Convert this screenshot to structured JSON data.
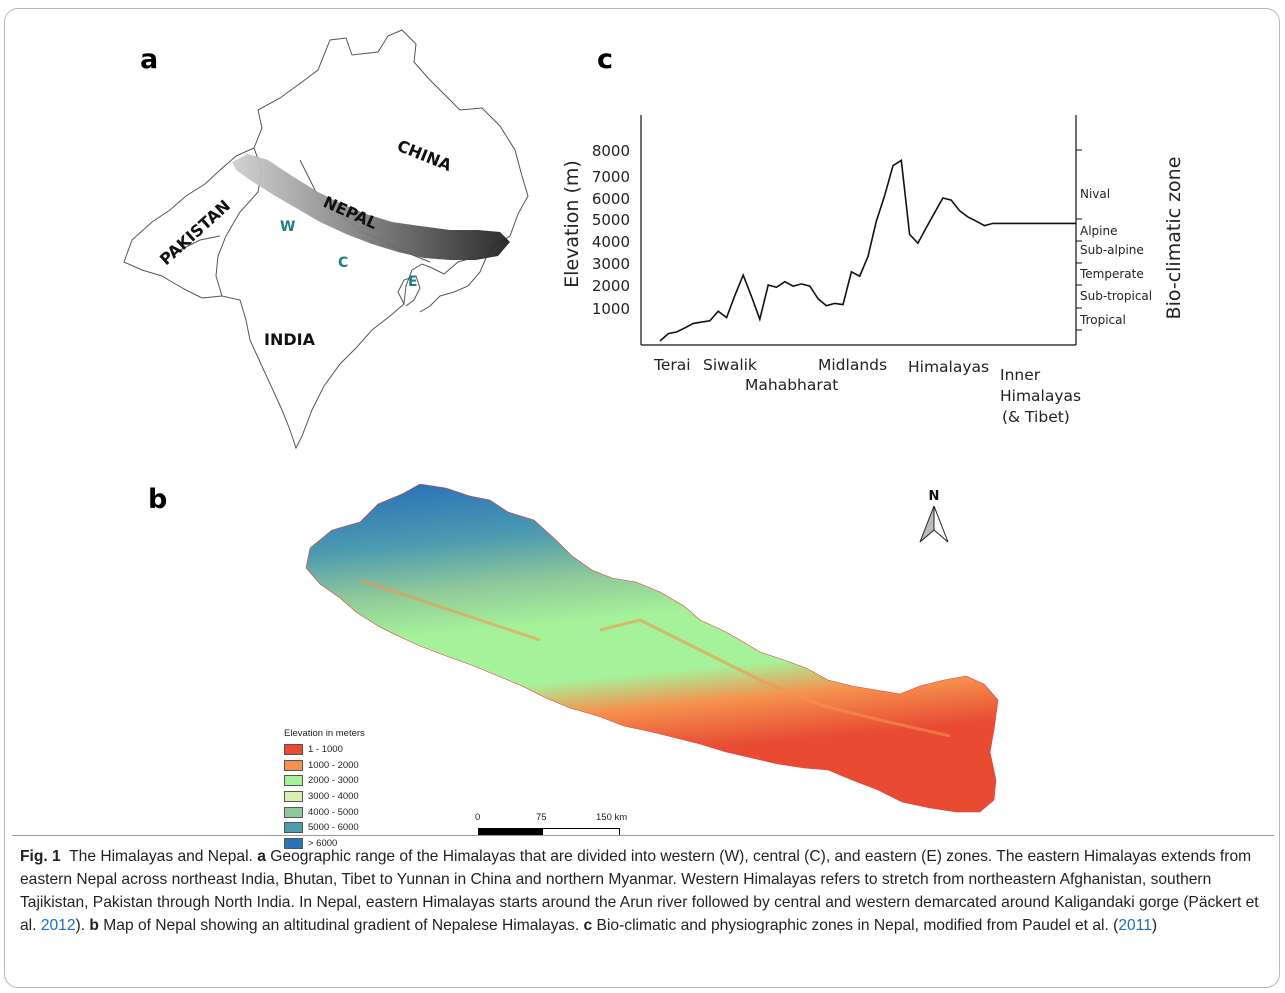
{
  "panels": {
    "a": {
      "letter": "a",
      "labels": {
        "china": "CHINA",
        "pakistan": "PAKISTAN",
        "nepal": "NEPAL",
        "india": "INDIA",
        "west": "W",
        "central": "C",
        "east": "E"
      },
      "zone_color": "#1e7f82"
    },
    "b": {
      "letter": "b",
      "north": "N",
      "legend": {
        "title": "Elevation in meters",
        "items": [
          {
            "label": "1 - 1000",
            "color": "#e84a32"
          },
          {
            "label": "1000 - 2000",
            "color": "#f5924f"
          },
          {
            "label": "2000 - 3000",
            "color": "#a6f29a"
          },
          {
            "label": "3000 - 4000",
            "color": "#d6f0b0"
          },
          {
            "label": "4000 - 5000",
            "color": "#8fc99a"
          },
          {
            "label": "5000 - 6000",
            "color": "#4d9bb0"
          },
          {
            "label": "> 6000",
            "color": "#2b73b8"
          }
        ]
      },
      "scale": {
        "labels": [
          "0",
          "75",
          "150 km"
        ]
      }
    },
    "c": {
      "letter": "c"
    }
  },
  "chart_data": {
    "type": "line",
    "title": "",
    "xlabel": "",
    "ylabel": "Elevation (m)",
    "y2label": "Bio-climatic zone",
    "yticks": [
      "1000",
      "2000",
      "3000",
      "4000",
      "5000",
      "6000",
      "7000",
      "8000"
    ],
    "zones": [
      "Tropical",
      "Sub-tropical",
      "Temperate",
      "Sub-alpine",
      "Alpine",
      "Nival"
    ],
    "regions": [
      "Terai",
      "Siwalik",
      "Mahabharat",
      "Midlands",
      "Himalayas",
      "Inner\nHimalayas\n(& Tibet)"
    ],
    "series": [
      {
        "x": [
          0,
          2,
          4,
          6,
          8,
          10,
          12,
          14,
          16,
          18,
          20,
          22,
          24,
          26,
          28,
          30,
          32,
          34,
          36,
          38,
          40,
          42,
          44,
          46,
          48,
          50,
          52,
          54,
          56,
          58,
          60,
          62,
          64,
          66,
          68,
          70,
          72,
          74,
          76,
          78,
          80,
          82,
          84,
          86,
          88,
          90,
          92,
          94,
          96,
          98,
          100
        ],
        "y": [
          0,
          200,
          250,
          380,
          520,
          560,
          600,
          900,
          700,
          1550,
          2450,
          1500,
          650,
          2000,
          1900,
          2150,
          1950,
          2050,
          1950,
          1400,
          1100,
          1200,
          1150,
          2600,
          2400,
          3300,
          4900,
          6100,
          7400,
          7600,
          4300,
          3900,
          4600,
          5300,
          6000,
          5900,
          5400,
          5100,
          4900,
          4700,
          4800,
          4800,
          4800,
          4800,
          4800,
          4800,
          4800,
          4800,
          4800,
          4800,
          4800
        ]
      }
    ]
  },
  "caption": {
    "fig_label": "Fig. 1",
    "lead": "The Himalayas and Nepal.",
    "a_label": "a",
    "a_text": "Geographic range of the Himalayas that are divided into western (W), central (C), and eastern (E) zones. The eastern Himalayas extends from eastern Nepal across northeast India, Bhutan, Tibet to Yunnan in China and northern Myanmar. Western Himalayas refers to stretch from northeastern Afghanistan, southern Tajikistan, Pakistan through North India. In Nepal, eastern Himalayas starts around the Arun river followed by central and western demarcated around Kaligandaki gorge (Päckert et al.",
    "ref1": "2012",
    "a_end": ").",
    "b_label": "b",
    "b_text": "Map of Nepal showing an altitudinal gradient of Nepalese Himalayas.",
    "c_label": "c",
    "c_text": "Bio-climatic and physiographic zones in Nepal, modified from Paudel et al. (",
    "ref2": "2011",
    "c_end": ")"
  }
}
